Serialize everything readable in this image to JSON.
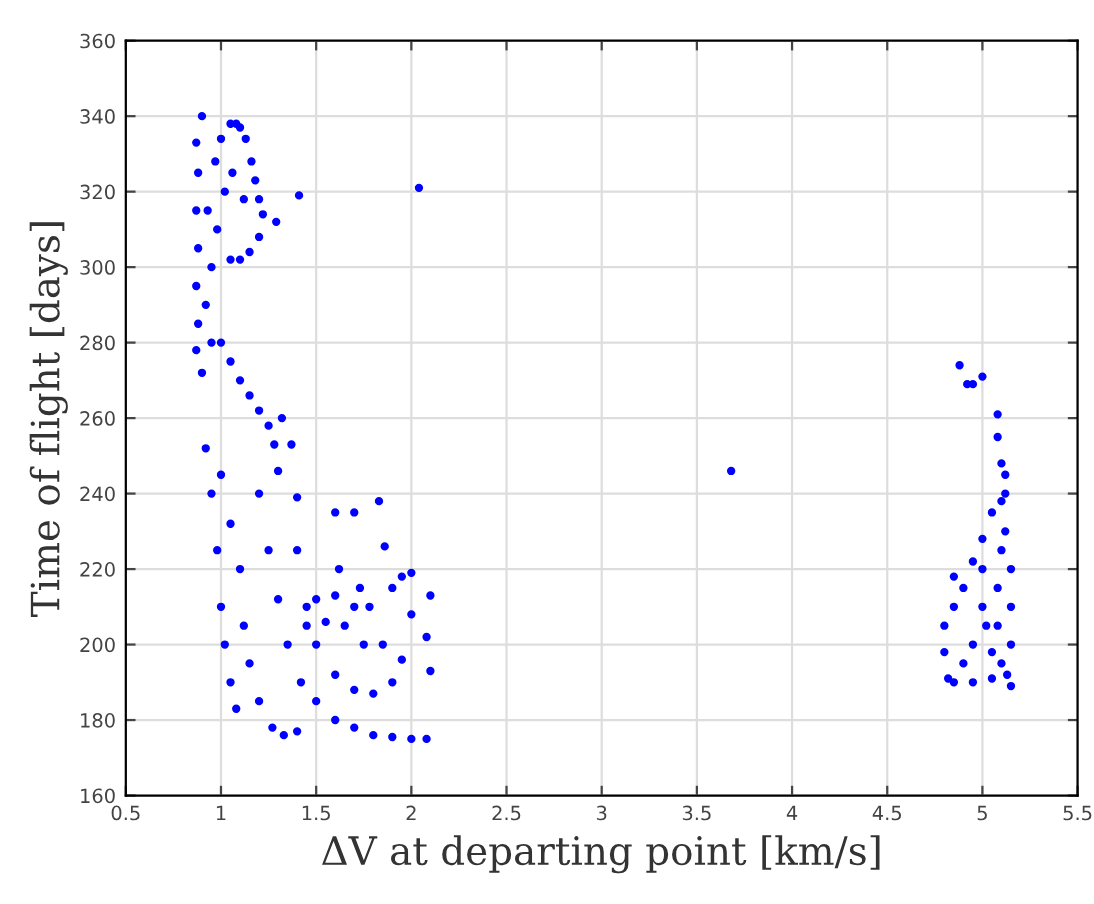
{
  "chart_data": {
    "type": "scatter",
    "xlabel": "ΔV at departing point [km/s]",
    "ylabel": "Time of flight [days]",
    "xlim": [
      0.5,
      5.5
    ],
    "xticks": [
      0.5,
      1,
      1.5,
      2,
      2.5,
      3,
      3.5,
      4,
      4.5,
      5,
      5.5
    ],
    "ylim": [
      160,
      360
    ],
    "yticks": [
      160,
      180,
      200,
      220,
      240,
      260,
      280,
      300,
      320,
      340,
      360
    ],
    "grid": true,
    "marker": "circle",
    "legend": false,
    "series": [
      {
        "color": "#0000ff",
        "x": [
          0.9,
          1.41,
          2.04,
          1.29,
          3.68,
          1.05,
          1.08,
          1.1,
          1.0,
          1.13,
          0.97,
          1.16,
          1.18,
          1.2,
          1.22,
          1.2,
          1.15,
          1.1,
          1.05,
          0.98,
          1.02,
          1.06,
          1.12,
          0.87,
          0.88,
          0.87,
          0.88,
          0.87,
          0.88,
          0.87,
          0.9,
          0.92,
          0.95,
          0.93,
          0.95,
          1.0,
          1.05,
          1.1,
          1.15,
          1.2,
          1.25,
          1.28,
          1.37,
          1.32,
          1.3,
          0.92,
          0.95,
          0.98,
          1.0,
          1.02,
          1.05,
          1.08,
          1.0,
          1.05,
          1.1,
          1.12,
          1.15,
          1.2,
          1.27,
          1.33,
          1.4,
          1.2,
          1.25,
          1.3,
          1.35,
          1.42,
          1.5,
          1.6,
          1.7,
          1.8,
          1.9,
          2.0,
          2.08,
          1.4,
          1.4,
          1.45,
          1.5,
          1.6,
          1.7,
          1.8,
          1.9,
          1.6,
          1.62,
          1.65,
          1.7,
          1.73,
          1.75,
          1.83,
          1.86,
          1.9,
          1.95,
          2.0,
          2.0,
          2.1,
          2.08,
          2.1,
          1.95,
          1.85,
          1.78,
          1.6,
          1.5,
          1.45,
          1.55,
          1.7,
          4.88,
          4.92,
          4.95,
          5.0,
          5.08,
          5.08,
          5.1,
          5.12,
          5.12,
          5.1,
          5.05,
          5.0,
          4.95,
          4.9,
          4.85,
          4.8,
          4.8,
          4.82,
          4.85,
          4.95,
          5.05,
          5.15,
          5.15,
          5.15,
          5.15,
          5.1,
          5.08,
          5.08,
          5.1,
          5.0,
          4.95,
          5.0,
          4.9,
          5.12,
          5.05,
          4.85,
          5.02,
          5.13
        ],
        "values": [
          340,
          319,
          321,
          312,
          246,
          338,
          338,
          337,
          334,
          334,
          328,
          328,
          323,
          318,
          314,
          308,
          304,
          302,
          302,
          310,
          320,
          325,
          318,
          333,
          325,
          315,
          305,
          295,
          285,
          278,
          272,
          290,
          300,
          315,
          280,
          280,
          275,
          270,
          266,
          262,
          258,
          253,
          253,
          260,
          246,
          252,
          240,
          225,
          210,
          200,
          190,
          183,
          245,
          232,
          220,
          205,
          195,
          185,
          178,
          176,
          177,
          240,
          225,
          212,
          200,
          190,
          185,
          180,
          178,
          176,
          175.5,
          175,
          175,
          239,
          225,
          210,
          200,
          192,
          188,
          187,
          190,
          235,
          220,
          205,
          235,
          215,
          200,
          238,
          226,
          215,
          218,
          219,
          208,
          213,
          202,
          193,
          196,
          200,
          210,
          213,
          212,
          205,
          206,
          210,
          274,
          269,
          269,
          271,
          261,
          255,
          248,
          245,
          240,
          238,
          235,
          228,
          222,
          215,
          210,
          205,
          198,
          191,
          190,
          190,
          191,
          189,
          200,
          210,
          220,
          225,
          215,
          205,
          195,
          210,
          200,
          220,
          195,
          230,
          198,
          218,
          205,
          192
        ]
      }
    ]
  }
}
